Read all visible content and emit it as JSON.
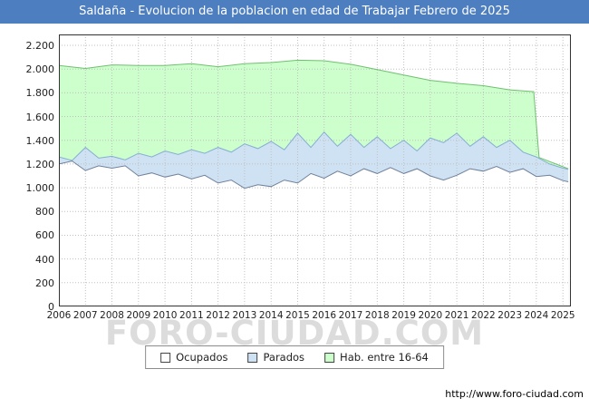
{
  "watermark": "FORO-CIUDAD.COM",
  "footer": {
    "url": "http://www.foro-ciudad.com"
  },
  "colors": {
    "title_bg": "#4d7ebf",
    "title_text": "#ffffff",
    "grid": "#c0c0c0",
    "plot_border": "#333333",
    "watermark": "#dcdcdc"
  },
  "chart_data": {
    "type": "area",
    "title": "Saldaña - Evolucion de la poblacion en edad de Trabajar Febrero de 2025",
    "xlabel": "",
    "ylabel": "",
    "xlim": [
      2006,
      2025.3
    ],
    "ylim": [
      0,
      2200
    ],
    "grid": true,
    "legend_position": "bottom",
    "x_ticks": [
      2006,
      2007,
      2008,
      2009,
      2010,
      2011,
      2012,
      2013,
      2014,
      2015,
      2016,
      2017,
      2018,
      2019,
      2020,
      2021,
      2022,
      2023,
      2024,
      2025
    ],
    "y_ticks": [
      0,
      200,
      400,
      600,
      800,
      1000,
      1200,
      1400,
      1600,
      1800,
      2000,
      2200
    ],
    "y_tick_labels": [
      "0",
      "200",
      "400",
      "600",
      "800",
      "1.000",
      "1.200",
      "1.400",
      "1.600",
      "1.800",
      "2.000",
      "2.200"
    ],
    "legend": [
      {
        "label": "Ocupados",
        "fill": "#ffffff",
        "border": "#444444"
      },
      {
        "label": "Parados",
        "fill": "#cfe2f4",
        "border": "#444444"
      },
      {
        "label": "Hab. entre 16-64",
        "fill": "#ccffcc",
        "border": "#444444"
      }
    ],
    "series": [
      {
        "name": "Hab. entre 16-64",
        "fill": "#ccffcc",
        "stroke": "#70c070",
        "x": [
          2006,
          2007,
          2008,
          2009,
          2010,
          2011,
          2012,
          2013,
          2014,
          2015,
          2016,
          2017,
          2018,
          2019,
          2020,
          2021,
          2022,
          2023,
          2023.9,
          2024.1,
          2025.2
        ],
        "values": [
          2030,
          2005,
          2035,
          2030,
          2030,
          2045,
          2020,
          2045,
          2055,
          2075,
          2070,
          2040,
          1995,
          1950,
          1905,
          1880,
          1860,
          1825,
          1810,
          1255,
          1160
        ]
      },
      {
        "name": "Parados",
        "fill": "#cfe2f4",
        "stroke": "#86aed2",
        "x": [
          2006,
          2006.5,
          2007,
          2007.5,
          2008,
          2008.5,
          2009,
          2009.5,
          2010,
          2010.5,
          2011,
          2011.5,
          2012,
          2012.5,
          2013,
          2013.5,
          2014,
          2014.5,
          2015,
          2015.5,
          2016,
          2016.5,
          2017,
          2017.5,
          2018,
          2018.5,
          2019,
          2019.5,
          2020,
          2020.5,
          2021,
          2021.5,
          2022,
          2022.5,
          2023,
          2023.5,
          2024,
          2024.5,
          2025,
          2025.2
        ],
        "values": [
          1260,
          1230,
          1340,
          1250,
          1265,
          1235,
          1290,
          1260,
          1310,
          1280,
          1320,
          1290,
          1340,
          1300,
          1370,
          1330,
          1390,
          1320,
          1460,
          1340,
          1470,
          1350,
          1450,
          1340,
          1430,
          1330,
          1400,
          1310,
          1420,
          1380,
          1460,
          1350,
          1430,
          1340,
          1400,
          1300,
          1260,
          1200,
          1165,
          1155
        ]
      },
      {
        "name": "Ocupados",
        "fill": "#ffffff",
        "stroke": "#70809a",
        "x": [
          2006,
          2006.5,
          2007,
          2007.5,
          2008,
          2008.5,
          2009,
          2009.5,
          2010,
          2010.5,
          2011,
          2011.5,
          2012,
          2012.5,
          2013,
          2013.5,
          2014,
          2014.5,
          2015,
          2015.5,
          2016,
          2016.5,
          2017,
          2017.5,
          2018,
          2018.5,
          2019,
          2019.5,
          2020,
          2020.5,
          2021,
          2021.5,
          2022,
          2022.5,
          2023,
          2023.5,
          2024,
          2024.5,
          2025,
          2025.2
        ],
        "values": [
          1200,
          1225,
          1145,
          1185,
          1165,
          1185,
          1100,
          1125,
          1090,
          1115,
          1075,
          1105,
          1040,
          1065,
          995,
          1025,
          1010,
          1065,
          1040,
          1120,
          1080,
          1140,
          1100,
          1160,
          1120,
          1170,
          1120,
          1160,
          1100,
          1065,
          1105,
          1160,
          1140,
          1180,
          1130,
          1160,
          1095,
          1105,
          1060,
          1050
        ]
      }
    ]
  }
}
